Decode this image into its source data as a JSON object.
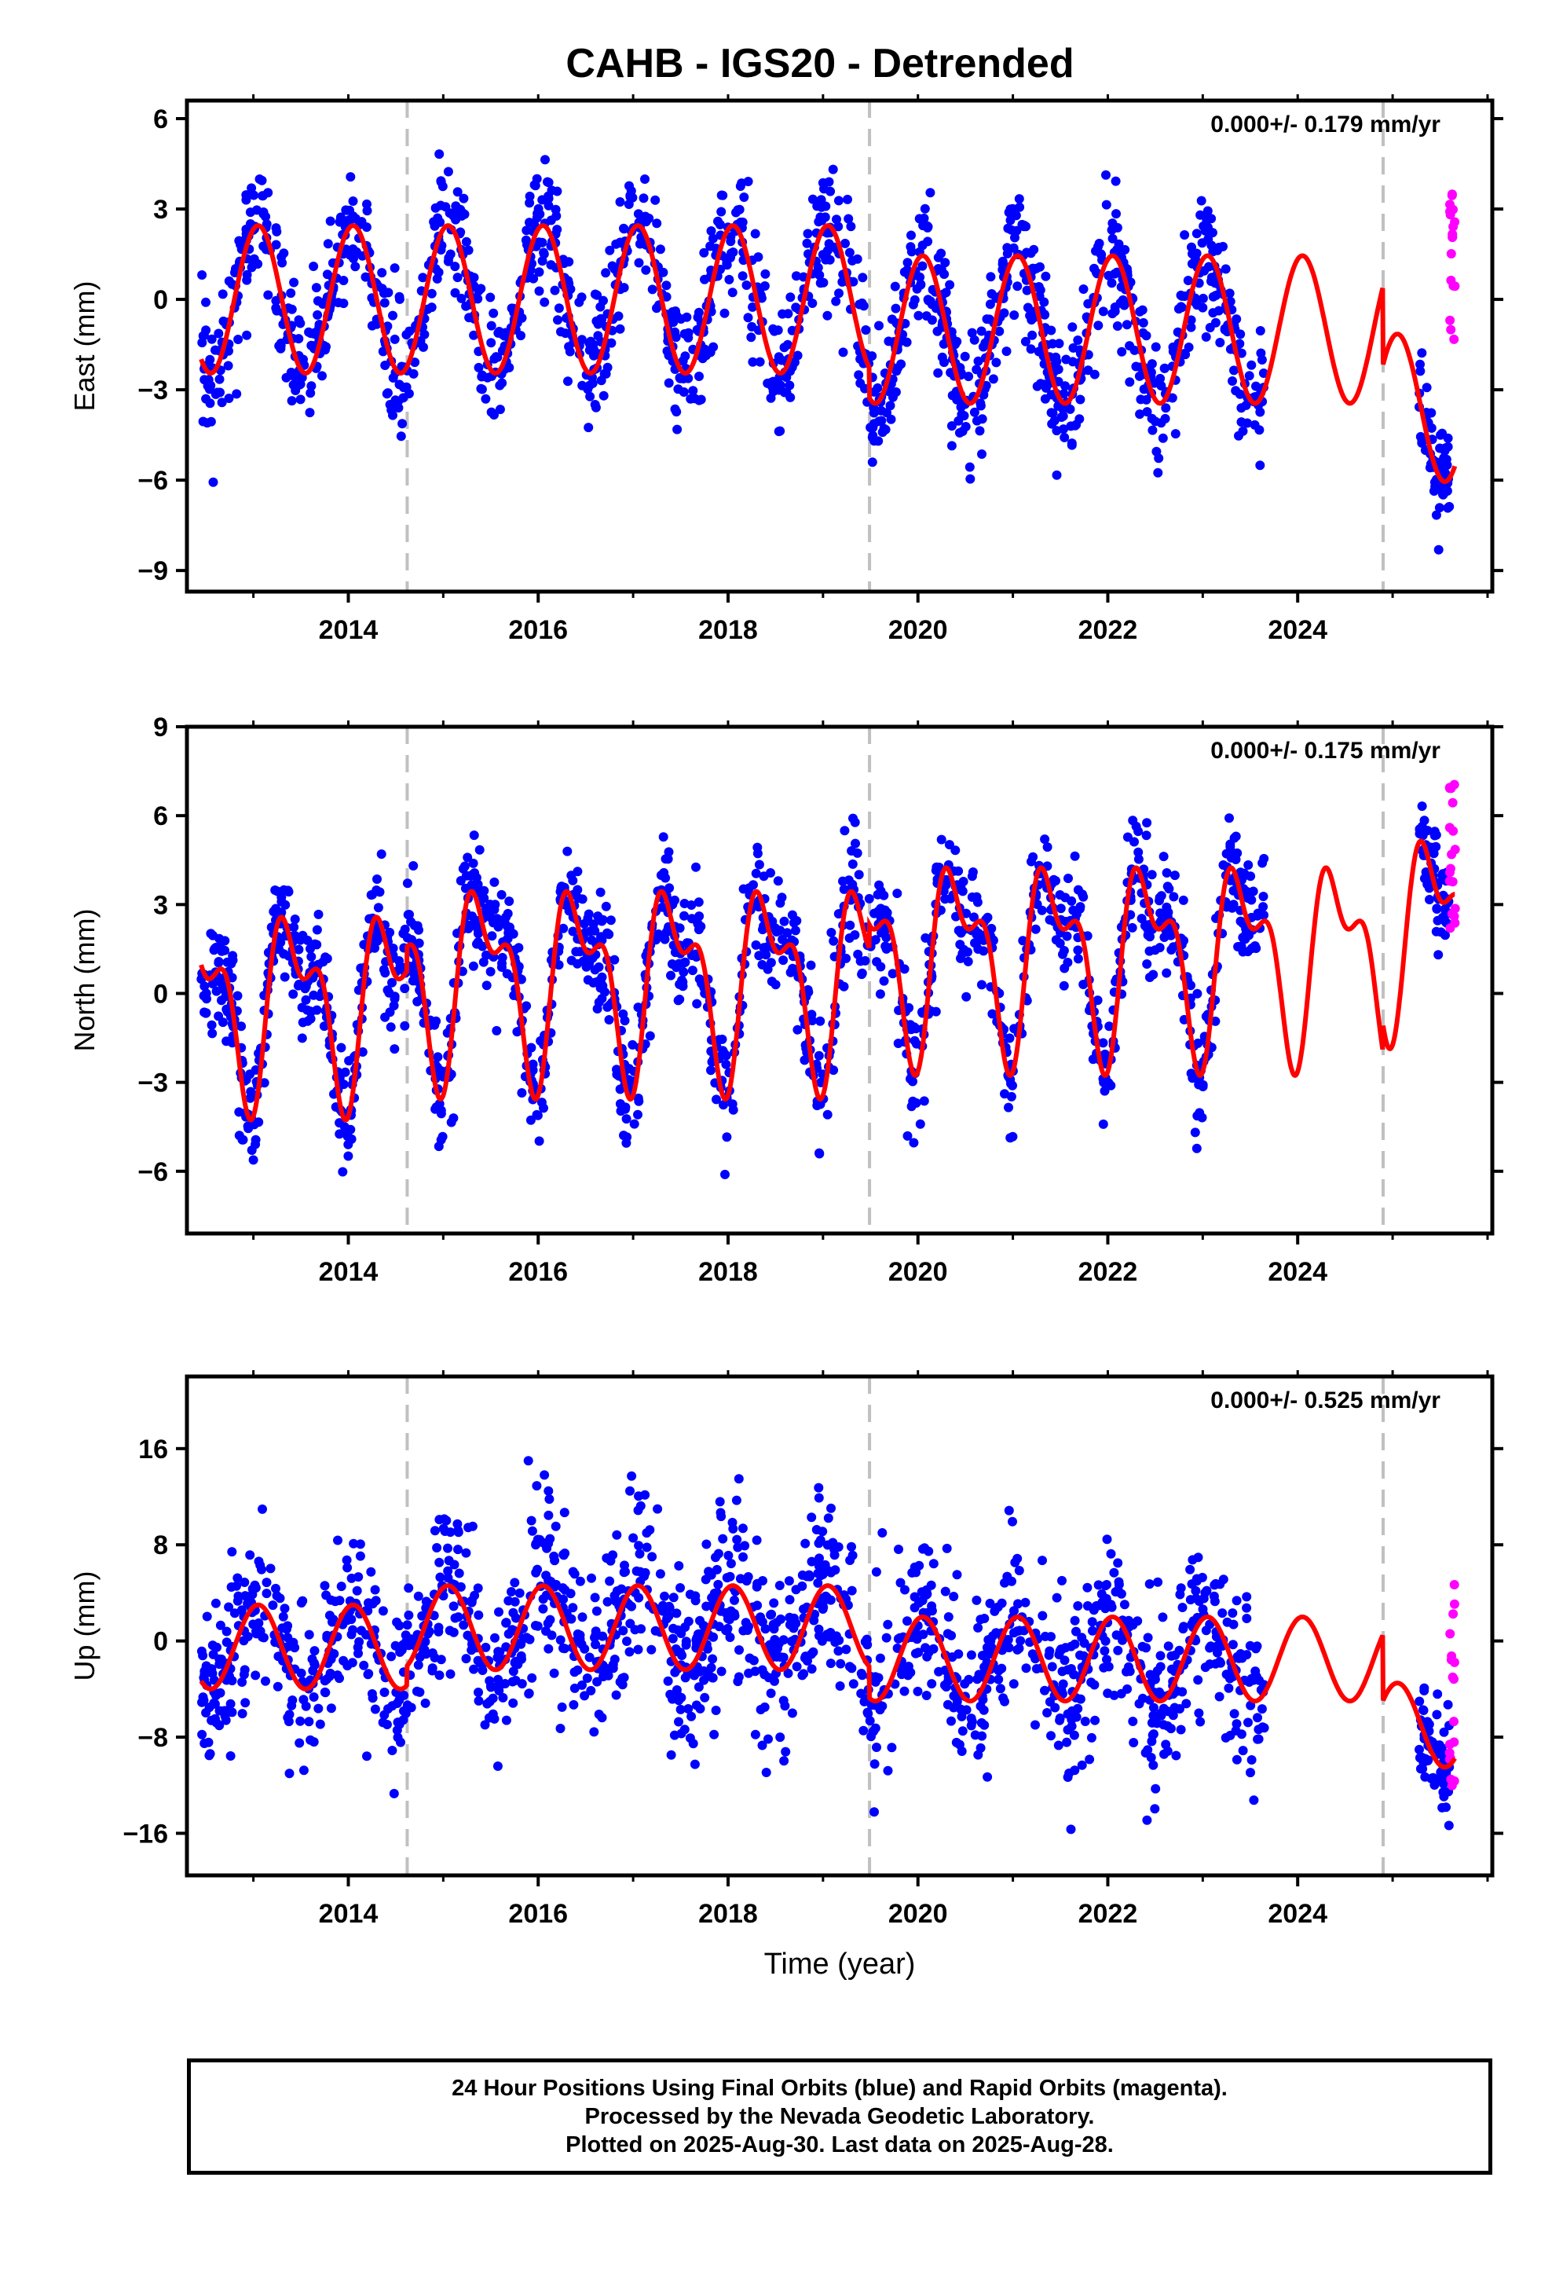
{
  "title": "CAHB - IGS20 - Detrended",
  "colors": {
    "final": "#0000ff",
    "rapid": "#ff00ff",
    "model": "#ff0000",
    "steps": "#c0c0c0",
    "frame": "#000000"
  },
  "caption": {
    "line1": "24 Hour Positions Using Final Orbits (blue) and Rapid Orbits (magenta).",
    "line2": "Processed by the Nevada Geodetic Laboratory.",
    "line3": "Plotted on 2025-Aug-30. Last data on 2025-Aug-28."
  },
  "chart_data": [
    {
      "type": "scatter",
      "id": "east",
      "ylabel": "East (mm)",
      "rate_label": "0.000+/- 0.179 mm/yr",
      "xlim": [
        2012.3,
        2026.05
      ],
      "ylim": [
        -9.7,
        6.6
      ],
      "xticks": [
        2014,
        2016,
        2018,
        2020,
        2022,
        2024
      ],
      "xtick_labels": [
        "2014",
        "2016",
        "2018",
        "2020",
        "2022",
        "2024"
      ],
      "yticks": [
        6,
        3,
        0,
        -3,
        -6,
        -9
      ],
      "ytick_labels": [
        "6",
        "3",
        "0",
        "−3",
        "−6",
        "−9"
      ],
      "step_epochs": [
        2014.62,
        2019.49,
        2024.9
      ],
      "data_range": [
        2012.45,
        2023.65
      ],
      "late_range": [
        2025.28,
        2025.6
      ],
      "rapid_range": [
        2025.6,
        2025.66
      ],
      "segments": [
        {
          "x0": 2012.45,
          "x1": 2019.49,
          "a1": 2.45,
          "p1": 0.05,
          "a2": 0.0,
          "p2": 0.0,
          "off": 0.0
        },
        {
          "x0": 2019.49,
          "x1": 2024.9,
          "a1": 2.45,
          "p1": 0.05,
          "a2": 0.0,
          "p2": 0.0,
          "off": -1.0
        },
        {
          "x0": 2024.9,
          "x1": 2025.66,
          "a1": 2.45,
          "p1": 0.05,
          "a2": 0.0,
          "p2": 0.0,
          "off": -3.6
        }
      ],
      "noise": 1.05,
      "late_offset": 0.0,
      "rapid_center": 1.2,
      "rapid_spread": 3.8
    },
    {
      "type": "scatter",
      "id": "north",
      "ylabel": "North (mm)",
      "rate_label": "0.000+/- 0.175 mm/yr",
      "xlim": [
        2012.3,
        2026.05
      ],
      "ylim": [
        -8.1,
        9.0
      ],
      "xticks": [
        2014,
        2016,
        2018,
        2020,
        2022,
        2024
      ],
      "xtick_labels": [
        "2014",
        "2016",
        "2018",
        "2020",
        "2022",
        "2024"
      ],
      "yticks": [
        9,
        6,
        3,
        0,
        -3,
        -6
      ],
      "ytick_labels": [
        "9",
        "6",
        "3",
        "0",
        "−3",
        "−6"
      ],
      "step_epochs": [
        2014.62,
        2019.49,
        2024.9
      ],
      "data_range": [
        2012.45,
        2023.65
      ],
      "late_range": [
        2025.28,
        2025.6
      ],
      "rapid_range": [
        2025.6,
        2025.66
      ],
      "segments": [
        {
          "x0": 2012.45,
          "x1": 2014.62,
          "a1": 2.6,
          "p1": 0.43,
          "a2": 1.5,
          "p2": 0.24,
          "off": -0.3
        },
        {
          "x0": 2014.62,
          "x1": 2019.49,
          "a1": 2.7,
          "p1": 0.43,
          "a2": 1.5,
          "p2": 0.24,
          "off": 0.5
        },
        {
          "x0": 2019.49,
          "x1": 2024.9,
          "a1": 2.7,
          "p1": 0.43,
          "a2": 1.5,
          "p2": 0.24,
          "off": 1.3
        },
        {
          "x0": 2024.9,
          "x1": 2025.66,
          "a1": 2.7,
          "p1": 0.43,
          "a2": 1.5,
          "p2": 0.24,
          "off": 2.2
        }
      ],
      "noise": 1.0,
      "late_offset": 0.0,
      "rapid_center": 4.6,
      "rapid_spread": 4.0
    },
    {
      "type": "scatter",
      "id": "up",
      "ylabel": "Up (mm)",
      "rate_label": "0.000+/- 0.525 mm/yr",
      "xlim": [
        2012.3,
        2026.05
      ],
      "ylim": [
        -19.5,
        22.0
      ],
      "xticks": [
        2014,
        2016,
        2018,
        2020,
        2022,
        2024
      ],
      "xtick_labels": [
        "2014",
        "2016",
        "2018",
        "2020",
        "2022",
        "2024"
      ],
      "yticks": [
        16,
        8,
        0,
        -8,
        -16
      ],
      "ytick_labels": [
        "16",
        "8",
        "0",
        "−8",
        "−16"
      ],
      "step_epochs": [
        2014.62,
        2019.49,
        2024.9
      ],
      "data_range": [
        2012.45,
        2023.65
      ],
      "late_range": [
        2025.28,
        2025.6
      ],
      "rapid_range": [
        2025.6,
        2025.66
      ],
      "segments": [
        {
          "x0": 2012.45,
          "x1": 2014.62,
          "a1": 3.5,
          "p1": 0.05,
          "a2": 0.0,
          "p2": 0.0,
          "off": -0.5
        },
        {
          "x0": 2014.62,
          "x1": 2019.49,
          "a1": 3.5,
          "p1": 0.05,
          "a2": 0.0,
          "p2": 0.0,
          "off": 1.1
        },
        {
          "x0": 2019.49,
          "x1": 2024.9,
          "a1": 3.5,
          "p1": 0.05,
          "a2": 0.0,
          "p2": 0.0,
          "off": -1.5
        },
        {
          "x0": 2024.9,
          "x1": 2025.66,
          "a1": 3.5,
          "p1": 0.05,
          "a2": 0.0,
          "p2": 0.0,
          "off": -7.0
        }
      ],
      "noise": 3.6,
      "late_offset": 0.0,
      "rapid_center": -3.0,
      "rapid_spread": 13.0
    }
  ],
  "xlabel": "Time (year)"
}
